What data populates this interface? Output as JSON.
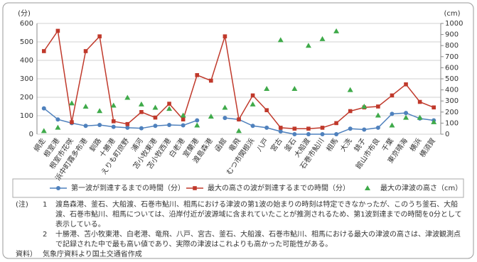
{
  "chart_data": {
    "type": "line",
    "y_label": "(分)",
    "y2_label": "(cm)",
    "categories": [
      "網走",
      "根室港",
      "根室市花咲",
      "浜中町霧多布港",
      "釧路",
      "十勝港",
      "えりも町庶野",
      "浦河",
      "苫小牧東港",
      "苫小牧西港",
      "白老港",
      "室蘭港",
      "渡島森港",
      "函館",
      "竜飛",
      "むつ市関根浜",
      "八戸",
      "宮古",
      "釜石",
      "大船渡",
      "石巻市鮎川",
      "相馬",
      "大洗",
      "銚子",
      "館山市布良",
      "千葉",
      "東京晴海",
      "横浜",
      "横須賀"
    ],
    "ylim": [
      0,
      600
    ],
    "yticks": [
      0,
      100,
      200,
      300,
      400,
      500,
      600
    ],
    "y2lim": [
      0,
      1000
    ],
    "y2ticks": [
      0,
      100,
      200,
      300,
      400,
      500,
      600,
      700,
      800,
      900,
      1000
    ],
    "series": [
      {
        "name": "第一波が到達するまでの時間（分）",
        "color": "#4f81bd",
        "marker": "circle",
        "values": [
          140,
          80,
          60,
          45,
          50,
          40,
          35,
          32,
          45,
          50,
          48,
          75,
          null,
          88,
          80,
          45,
          35,
          15,
          0,
          0,
          0,
          0,
          30,
          25,
          35,
          110,
          115,
          85,
          75
        ]
      },
      {
        "name": "最大の高さの波が到達するまでの時間（分）",
        "color": "#c0392b",
        "marker": "square",
        "values": [
          450,
          560,
          65,
          450,
          530,
          70,
          55,
          120,
          90,
          165,
          80,
          320,
          290,
          530,
          80,
          210,
          130,
          35,
          30,
          30,
          35,
          60,
          125,
          145,
          150,
          210,
          270,
          175,
          145
        ]
      },
      {
        "name": "最大の津波の高さ（cm）",
        "color": "#3faa4a",
        "marker": "triangle",
        "type": "scatter",
        "axis": "y2",
        "values": [
          30,
          60,
          280,
          250,
          210,
          260,
          330,
          270,
          240,
          230,
          170,
          80,
          160,
          240,
          30,
          270,
          410,
          850,
          410,
          800,
          860,
          930,
          400,
          250,
          170,
          80,
          150,
          150,
          110
        ]
      }
    ],
    "notes": {
      "label": "(注)",
      "items": [
        {
          "number": "1",
          "text": "渡島森港、釜石、大船渡、石巻市鮎川、相馬における津波の第1波の始まりの時刻は特定できなかったが、このうち釜石、大船渡、石巻市鮎川、相馬については、沿岸付近が波源域に含まれていたことが推測されるため、第1波到達までの時間を0分として表示している。"
        },
        {
          "number": "2",
          "text": "十勝港、苫小牧東港、白老港、竜飛、八戸、宮古、釜石、大船渡、石巻市鮎川、相馬における最大の津波の高さは、津波観測点で記録された中で最も高い値であり、実際の津波はこれよりも高かった可能性がある。"
        }
      ]
    },
    "source": {
      "label": "資料）",
      "text": "気象庁資料より国土交通省作成"
    }
  }
}
